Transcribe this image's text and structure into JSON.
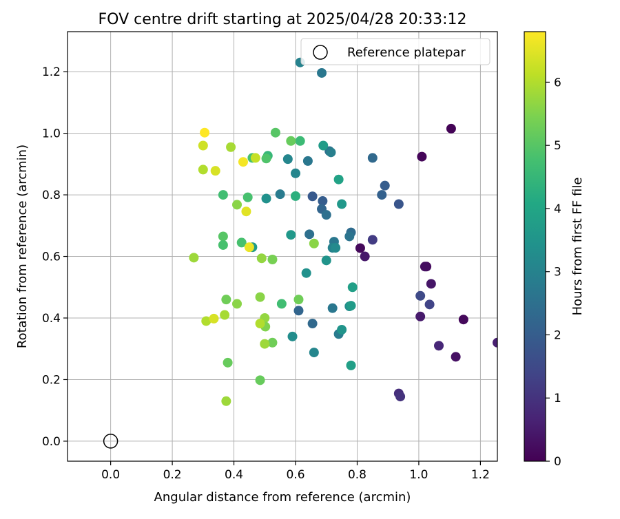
{
  "chart_data": {
    "type": "scatter",
    "title": "FOV centre drift starting at 2025/04/28 20:33:12",
    "xlabel": "Angular distance from reference (arcmin)",
    "ylabel": "Rotation from reference (arcmin)",
    "xlim": [
      -0.14,
      1.255
    ],
    "ylim": [
      -0.065,
      1.33
    ],
    "xticks": [
      "0.0",
      "0.2",
      "0.4",
      "0.6",
      "0.8",
      "1.0",
      "1.2"
    ],
    "yticks": [
      "0.0",
      "0.2",
      "0.4",
      "0.6",
      "0.8",
      "1.0",
      "1.2"
    ],
    "grid": true,
    "legend": {
      "placement": "upper right",
      "entries": [
        "Reference platepar"
      ]
    },
    "colorbar": {
      "label": "Hours from first FF file",
      "range": [
        0,
        6.8
      ],
      "ticks": [
        "0",
        "1",
        "2",
        "3",
        "4",
        "5",
        "6"
      ],
      "colormap": "viridis"
    },
    "reference_point": {
      "name": "Reference platepar",
      "x": 0.0,
      "y": 0.0
    },
    "series": [
      {
        "points": [
          [
            1.105,
            1.015,
            0.05
          ],
          [
            1.01,
            0.924,
            0.1
          ],
          [
            0.81,
            0.627,
            0.15
          ],
          [
            0.825,
            0.6,
            0.45
          ],
          [
            1.025,
            0.567,
            0.2
          ],
          [
            1.02,
            0.567,
            0.25
          ],
          [
            1.04,
            0.511,
            0.4
          ],
          [
            1.145,
            0.395,
            0.15
          ],
          [
            1.005,
            0.405,
            0.5
          ],
          [
            1.065,
            0.31,
            0.75
          ],
          [
            1.12,
            0.274,
            0.3
          ],
          [
            1.255,
            0.32,
            0.6
          ],
          [
            0.935,
            0.155,
            0.9
          ],
          [
            0.94,
            0.145,
            1.0
          ],
          [
            0.85,
            0.654,
            1.2
          ],
          [
            1.035,
            0.444,
            1.35
          ],
          [
            1.005,
            0.472,
            1.5
          ],
          [
            0.935,
            0.77,
            1.8
          ],
          [
            0.89,
            0.83,
            2.0
          ],
          [
            0.88,
            0.8,
            2.1
          ],
          [
            0.85,
            0.92,
            2.3
          ],
          [
            0.688,
            0.78,
            2.0
          ],
          [
            0.685,
            0.754,
            2.2
          ],
          [
            0.7,
            0.735,
            2.5
          ],
          [
            0.655,
            0.795,
            1.9
          ],
          [
            0.78,
            0.678,
            2.4
          ],
          [
            0.775,
            0.665,
            2.6
          ],
          [
            0.645,
            0.672,
            2.5
          ],
          [
            0.725,
            0.648,
            2.7
          ],
          [
            0.72,
            0.628,
            3.0
          ],
          [
            0.73,
            0.628,
            3.2
          ],
          [
            0.61,
            0.424,
            2.2
          ],
          [
            0.655,
            0.382,
            2.3
          ],
          [
            0.72,
            0.432,
            2.7
          ],
          [
            0.74,
            0.348,
            2.8
          ],
          [
            0.66,
            0.288,
            3.1
          ],
          [
            0.75,
            0.362,
            3.5
          ],
          [
            0.775,
            0.438,
            3.3
          ],
          [
            0.78,
            0.44,
            3.7
          ],
          [
            0.59,
            0.34,
            3.3
          ],
          [
            0.785,
            0.5,
            3.8
          ],
          [
            0.78,
            0.246,
            3.8
          ],
          [
            0.685,
            1.196,
            2.7
          ],
          [
            0.615,
            1.23,
            3.0
          ],
          [
            0.71,
            0.942,
            2.5
          ],
          [
            0.715,
            0.938,
            2.9
          ],
          [
            0.64,
            0.91,
            2.7
          ],
          [
            0.575,
            0.916,
            3.1
          ],
          [
            0.69,
            0.96,
            3.7
          ],
          [
            0.6,
            0.87,
            3.1
          ],
          [
            0.74,
            0.85,
            3.9
          ],
          [
            0.75,
            0.77,
            3.6
          ],
          [
            0.55,
            0.802,
            2.8
          ],
          [
            0.505,
            0.788,
            3.4
          ],
          [
            0.6,
            0.796,
            4.3
          ],
          [
            0.585,
            0.67,
            3.6
          ],
          [
            0.635,
            0.546,
            3.4
          ],
          [
            0.7,
            0.587,
            3.5
          ],
          [
            0.615,
            0.975,
            4.6
          ],
          [
            0.585,
            0.975,
            5.2
          ],
          [
            0.535,
            1.002,
            5.0
          ],
          [
            0.51,
            0.927,
            4.5
          ],
          [
            0.505,
            0.918,
            4.9
          ],
          [
            0.46,
            0.92,
            4.8
          ],
          [
            0.46,
            0.63,
            3.7
          ],
          [
            0.445,
            0.792,
            4.8
          ],
          [
            0.365,
            0.8,
            4.7
          ],
          [
            0.41,
            0.768,
            5.6
          ],
          [
            0.365,
            0.665,
            5.0
          ],
          [
            0.365,
            0.637,
            4.8
          ],
          [
            0.425,
            0.645,
            4.8
          ],
          [
            0.66,
            0.642,
            5.6
          ],
          [
            0.525,
            0.59,
            5.4
          ],
          [
            0.49,
            0.594,
            5.7
          ],
          [
            0.27,
            0.596,
            5.8
          ],
          [
            0.61,
            0.46,
            5.3
          ],
          [
            0.555,
            0.446,
            4.7
          ],
          [
            0.485,
            0.468,
            5.6
          ],
          [
            0.375,
            0.46,
            5.3
          ],
          [
            0.41,
            0.446,
            5.6
          ],
          [
            0.5,
            0.4,
            5.7
          ],
          [
            0.502,
            0.372,
            5.5
          ],
          [
            0.485,
            0.382,
            6.0
          ],
          [
            0.525,
            0.32,
            5.3
          ],
          [
            0.5,
            0.316,
            5.8
          ],
          [
            0.31,
            0.39,
            6.0
          ],
          [
            0.335,
            0.398,
            6.4
          ],
          [
            0.37,
            0.41,
            5.9
          ],
          [
            0.38,
            0.255,
            5.2
          ],
          [
            0.485,
            0.198,
            5.2
          ],
          [
            0.375,
            0.13,
            5.8
          ],
          [
            0.39,
            0.955,
            5.9
          ],
          [
            0.3,
            0.96,
            6.3
          ],
          [
            0.305,
            1.002,
            6.8
          ],
          [
            0.3,
            0.882,
            6.0
          ],
          [
            0.34,
            0.878,
            6.4
          ],
          [
            0.43,
            0.907,
            6.7
          ],
          [
            0.47,
            0.92,
            6.2
          ],
          [
            0.44,
            0.746,
            6.5
          ],
          [
            0.45,
            0.63,
            6.6
          ]
        ]
      }
    ]
  }
}
